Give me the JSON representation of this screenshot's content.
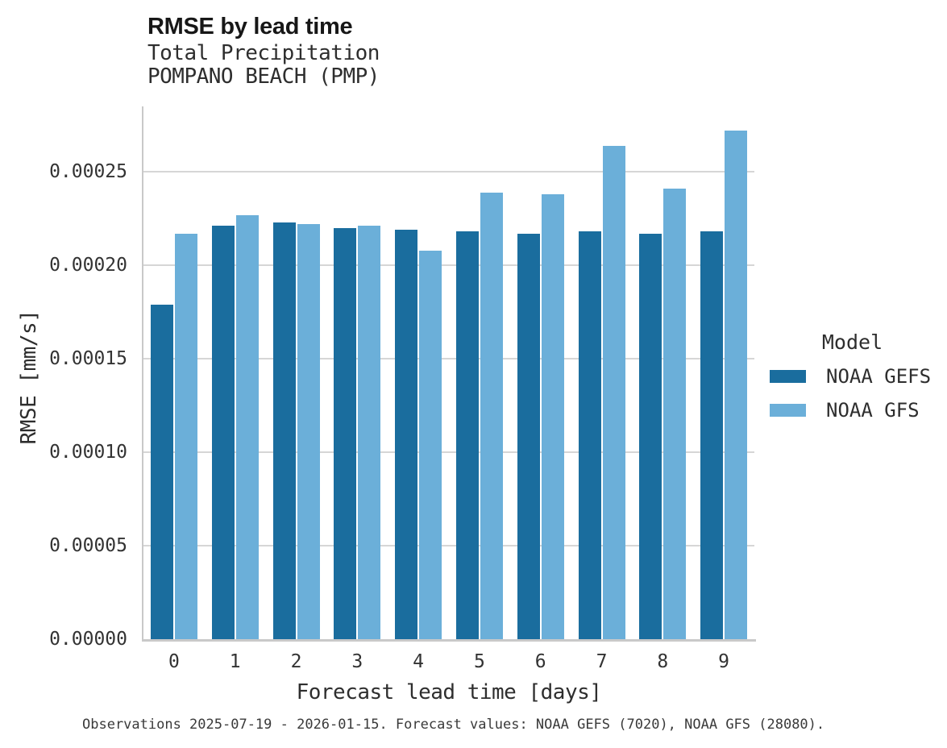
{
  "header": {
    "title": "RMSE by lead time",
    "subtitle": "Total Precipitation",
    "station": "POMPANO BEACH (PMP)"
  },
  "legend": {
    "title": "Model"
  },
  "footer": {
    "note": "Observations 2025-07-19 - 2026-01-15. Forecast values: NOAA GEFS (7020), NOAA GFS (28080)."
  },
  "chart_data": {
    "type": "bar",
    "title": "RMSE by lead time",
    "subtitle": "Total Precipitation",
    "station": "POMPANO BEACH (PMP)",
    "xlabel": "Forecast lead time [days]",
    "ylabel": "RMSE [mm/s]",
    "categories": [
      "0",
      "1",
      "2",
      "3",
      "4",
      "5",
      "6",
      "7",
      "8",
      "9"
    ],
    "series": [
      {
        "name": "NOAA GEFS",
        "color": "#1a6d9e",
        "values": [
          0.000179,
          0.000221,
          0.000223,
          0.00022,
          0.000219,
          0.000218,
          0.000217,
          0.000218,
          0.000217,
          0.000218
        ]
      },
      {
        "name": "NOAA GFS",
        "color": "#6bafd9",
        "values": [
          0.000217,
          0.000227,
          0.000222,
          0.000221,
          0.000208,
          0.000239,
          0.000238,
          0.000264,
          0.000241,
          0.000272
        ]
      }
    ],
    "ylim": [
      0,
      0.000285
    ],
    "yticks": [
      0,
      5e-05,
      0.0001,
      0.00015,
      0.0002,
      0.00025
    ],
    "ytick_labels": [
      "0.00000",
      "0.00005",
      "0.00010",
      "0.00015",
      "0.00020",
      "0.00025"
    ],
    "legend_title": "Model",
    "legend_position": "right",
    "grid": "horizontal"
  }
}
